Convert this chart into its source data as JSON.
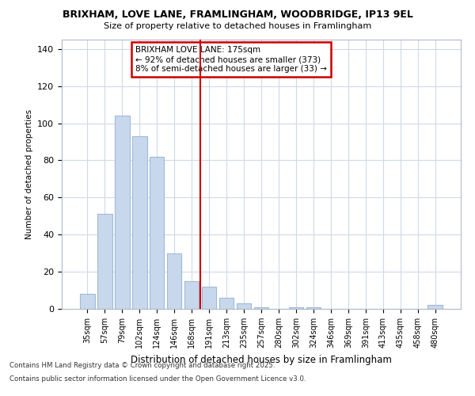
{
  "title": "BRIXHAM, LOVE LANE, FRAMLINGHAM, WOODBRIDGE, IP13 9EL",
  "subtitle": "Size of property relative to detached houses in Framlingham",
  "xlabel": "Distribution of detached houses by size in Framlingham",
  "ylabel": "Number of detached properties",
  "footer_line1": "Contains HM Land Registry data © Crown copyright and database right 2025.",
  "footer_line2": "Contains public sector information licensed under the Open Government Licence v3.0.",
  "property_label": "BRIXHAM LOVE LANE: 175sqm",
  "pct_smaller": "92% of detached houses are smaller (373)",
  "pct_larger": "8% of semi-detached houses are larger (33)",
  "bar_color": "#c8d8ec",
  "bar_edge_color": "#a0b8d8",
  "vline_color": "#cc0000",
  "annotation_box_edge": "#cc0000",
  "categories": [
    "35sqm",
    "57sqm",
    "79sqm",
    "102sqm",
    "124sqm",
    "146sqm",
    "168sqm",
    "191sqm",
    "213sqm",
    "235sqm",
    "257sqm",
    "280sqm",
    "302sqm",
    "324sqm",
    "346sqm",
    "369sqm",
    "391sqm",
    "413sqm",
    "435sqm",
    "458sqm",
    "480sqm"
  ],
  "values": [
    8,
    51,
    104,
    93,
    82,
    30,
    15,
    12,
    6,
    3,
    1,
    0,
    1,
    1,
    0,
    0,
    0,
    0,
    0,
    0,
    2
  ],
  "ylim": [
    0,
    145
  ],
  "yticks": [
    0,
    20,
    40,
    60,
    80,
    100,
    120,
    140
  ],
  "vline_x": 6.5,
  "bg_color": "#ffffff",
  "plot_bg_color": "#ffffff",
  "grid_color": "#d0d8e8"
}
